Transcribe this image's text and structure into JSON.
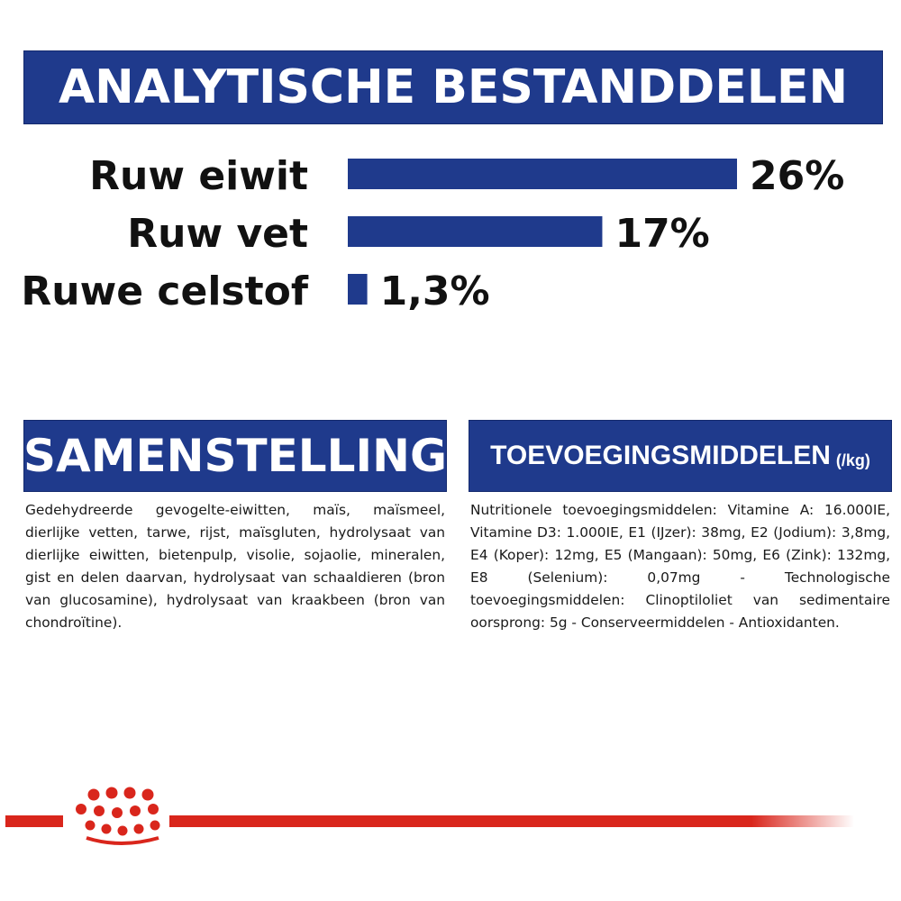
{
  "header": {
    "title": "ANALYTISCHE BESTANDDELEN"
  },
  "chart_data": {
    "type": "bar",
    "orientation": "horizontal",
    "title": "ANALYTISCHE BESTANDDELEN",
    "categories": [
      "Ruw eiwit",
      "Ruw vet",
      "Ruwe celstof"
    ],
    "values": [
      26,
      17,
      1.3
    ],
    "data_labels": [
      "26%",
      "17%",
      "1,3%"
    ],
    "xlim": [
      0,
      26
    ],
    "grid": false,
    "bar_color": "#1f3a8c"
  },
  "composition": {
    "title": "SAMENSTELLING",
    "text": "Gedehydreerde gevogelte-eiwitten, maïs, maïsmeel, dierlijke vetten, tarwe, rijst, maïsgluten, hydrolysaat van dierlijke eiwitten, bietenpulp, visolie, sojaolie, mineralen, gist en delen daarvan, hydrolysaat van schaaldieren (bron van glucosamine), hydrolysaat van kraakbeen (bron van chondroïtine)."
  },
  "additives": {
    "title": "TOEVOEGINGSMIDDELEN",
    "unit": "(/kg)",
    "text": "Nutritionele toevoegingsmiddelen: Vitamine A: 16.000IE, Vitamine D3: 1.000IE, E1 (IJzer): 38mg, E2 (Jodium): 3,8mg, E4 (Koper): 12mg, E5 (Mangaan): 50mg, E6 (Zink): 132mg, E8 (Selenium): 0,07mg - Technologische toevoegingsmiddelen: Clinoptiloliet van sedimentaire oorsprong: 5g - Conserveermiddelen - Antioxidanten."
  },
  "footer": {
    "logo_icon": "royal-canin-crown-icon",
    "line_color": "#d9261c"
  }
}
